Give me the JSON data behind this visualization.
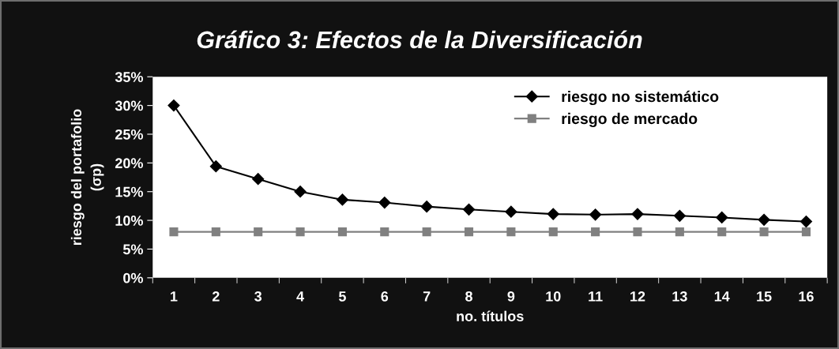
{
  "chart_data": {
    "type": "line",
    "title": "Gráfico 3: Efectos de la Diversificación",
    "xlabel": "no. títulos",
    "ylabel": "riesgo del portafolio\n(σp)",
    "categories": [
      "1",
      "2",
      "3",
      "4",
      "5",
      "6",
      "7",
      "8",
      "9",
      "10",
      "11",
      "12",
      "13",
      "14",
      "15",
      "16"
    ],
    "series": [
      {
        "name": "riesgo no sistemático",
        "color": "#000000",
        "marker": "diamond",
        "values": [
          30,
          19.4,
          17.2,
          15.0,
          13.6,
          13.1,
          12.4,
          11.9,
          11.5,
          11.1,
          11.0,
          11.1,
          10.8,
          10.5,
          10.1,
          9.8
        ]
      },
      {
        "name": "riesgo de mercado",
        "color": "#808080",
        "marker": "square",
        "values": [
          8,
          8,
          8,
          8,
          8,
          8,
          8,
          8,
          8,
          8,
          8,
          8,
          8,
          8,
          8,
          8
        ]
      }
    ],
    "ylim": [
      0,
      35
    ],
    "yticks": [
      {
        "value": 0,
        "label": "0%"
      },
      {
        "value": 5,
        "label": "5%"
      },
      {
        "value": 10,
        "label": "10%"
      },
      {
        "value": 15,
        "label": "15%"
      },
      {
        "value": 20,
        "label": "20%"
      },
      {
        "value": 25,
        "label": "25%"
      },
      {
        "value": 30,
        "label": "30%"
      },
      {
        "value": 35,
        "label": "35%"
      }
    ],
    "grid": false,
    "legend": "top right",
    "line_style": "solid"
  }
}
